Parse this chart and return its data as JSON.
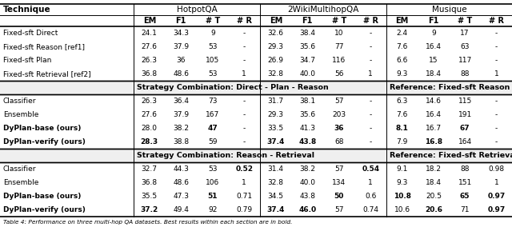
{
  "section1_rows": [
    [
      "Fixed-sft Direct",
      "24.1",
      "34.3",
      "9",
      "-",
      "32.6",
      "38.4",
      "10",
      "-",
      "2.4",
      "9",
      "17",
      "-"
    ],
    [
      "Fixed-sft Reason [ref1]",
      "27.6",
      "37.9",
      "53",
      "-",
      "29.3",
      "35.6",
      "77",
      "-",
      "7.6",
      "16.4",
      "63",
      "-"
    ],
    [
      "Fixed-sft Plan",
      "26.3",
      "36",
      "105",
      "-",
      "26.9",
      "34.7",
      "116",
      "-",
      "6.6",
      "15",
      "117",
      "-"
    ],
    [
      "Fixed-sft Retrieval [ref2]",
      "36.8",
      "48.6",
      "53",
      "1",
      "32.8",
      "40.0",
      "56",
      "1",
      "9.3",
      "18.4",
      "88",
      "1"
    ]
  ],
  "section2_left_header": "Strategy Combination: Direct - Plan - Reason",
  "section2_right_header": "Reference: Fixed-sft Reason",
  "section2_rows": [
    [
      "Classifier",
      "26.3",
      "36.4",
      "73",
      "-",
      "31.7",
      "38.1",
      "57",
      "-",
      "6.3",
      "14.6",
      "115",
      "-"
    ],
    [
      "Ensemble",
      "27.6",
      "37.9",
      "167",
      "-",
      "29.3",
      "35.6",
      "203",
      "-",
      "7.6",
      "16.4",
      "191",
      "-"
    ],
    [
      "DyPlan-base (ours)",
      "28.0",
      "38.2",
      "47",
      "-",
      "33.5",
      "41.3",
      "36",
      "-",
      "8.1",
      "16.7",
      "67",
      "-"
    ],
    [
      "DyPlan-verify (ours)",
      "28.3",
      "38.8",
      "59",
      "-",
      "37.4",
      "43.8",
      "68",
      "-",
      "7.9",
      "16.8",
      "164",
      "-"
    ]
  ],
  "section2_bold": [
    [
      false,
      false,
      false,
      false,
      false,
      false,
      false,
      false,
      false,
      false,
      false,
      false,
      false
    ],
    [
      false,
      false,
      false,
      false,
      false,
      false,
      false,
      false,
      false,
      false,
      false,
      false,
      false
    ],
    [
      false,
      false,
      false,
      true,
      false,
      false,
      false,
      true,
      false,
      true,
      false,
      true,
      false
    ],
    [
      true,
      true,
      false,
      false,
      false,
      true,
      true,
      false,
      false,
      false,
      true,
      false,
      false
    ]
  ],
  "section3_left_header": "Strategy Combination: Reason - Retrieval",
  "section3_right_header": "Reference: Fixed-sft Retrieval",
  "section3_rows": [
    [
      "Classifier",
      "32.7",
      "44.3",
      "53",
      "0.52",
      "31.4",
      "38.2",
      "57",
      "0.54",
      "9.1",
      "18.2",
      "88",
      "0.98"
    ],
    [
      "Ensemble",
      "36.8",
      "48.6",
      "106",
      "1",
      "32.8",
      "40.0",
      "134",
      "1",
      "9.3",
      "18.4",
      "151",
      "1"
    ],
    [
      "DyPlan-base (ours)",
      "35.5",
      "47.3",
      "51",
      "0.71",
      "34.5",
      "43.8",
      "50",
      "0.6",
      "10.8",
      "20.5",
      "65",
      "0.97"
    ],
    [
      "DyPlan-verify (ours)",
      "37.2",
      "49.4",
      "92",
      "0.79",
      "37.4",
      "46.0",
      "57",
      "0.74",
      "10.6",
      "20.6",
      "71",
      "0.97"
    ]
  ],
  "section3_bold": [
    [
      false,
      false,
      false,
      false,
      true,
      false,
      false,
      false,
      true,
      false,
      false,
      false,
      false
    ],
    [
      false,
      false,
      false,
      false,
      false,
      false,
      false,
      false,
      false,
      false,
      false,
      false,
      false
    ],
    [
      false,
      false,
      false,
      true,
      false,
      false,
      false,
      true,
      false,
      true,
      false,
      true,
      true
    ],
    [
      true,
      true,
      false,
      false,
      false,
      true,
      true,
      false,
      false,
      false,
      true,
      false,
      true
    ]
  ],
  "caption": "Table 4: Performance on three multi-hop QA datasets. Best results within each section are in bold."
}
